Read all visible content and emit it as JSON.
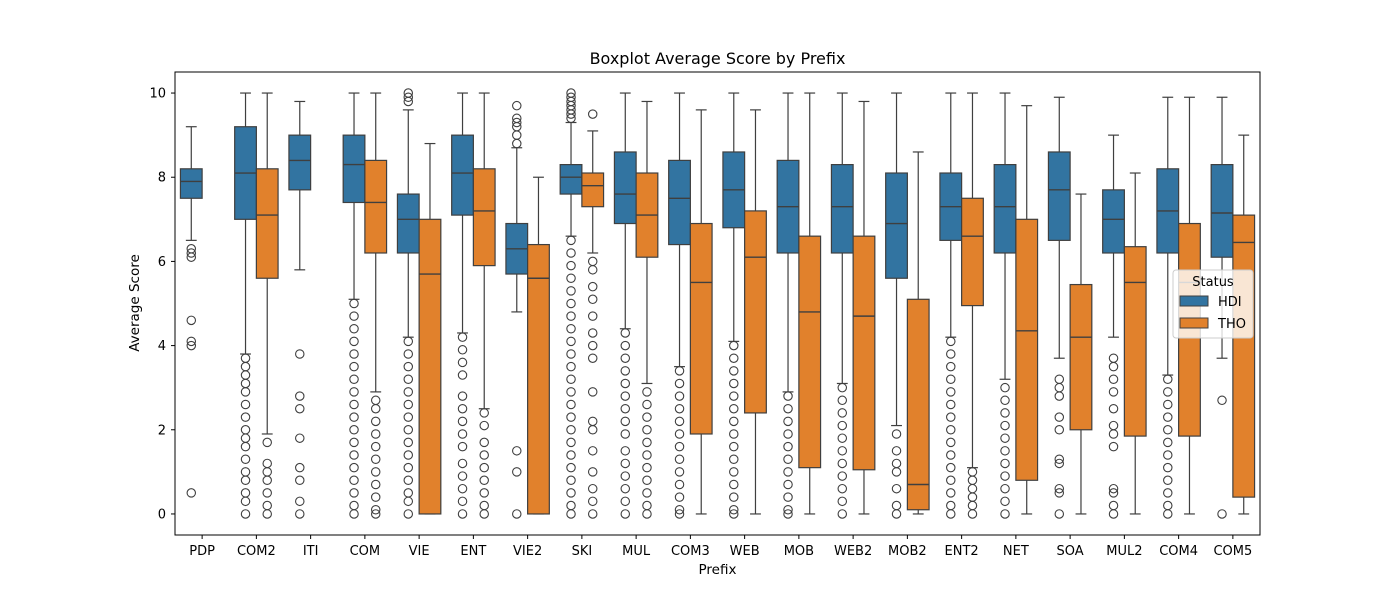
{
  "chart_data": {
    "type": "boxplot",
    "title": "Boxplot Average Score by Prefix",
    "xlabel": "Prefix",
    "ylabel": "Average Score",
    "ylim": [
      -0.5,
      10.5
    ],
    "yticks": [
      0,
      2,
      4,
      6,
      8,
      10
    ],
    "grid": false,
    "legend": {
      "title": "Status",
      "placement": "right"
    },
    "categories": [
      "PDP",
      "COM2",
      "ITI",
      "COM",
      "VIE",
      "ENT",
      "VIE2",
      "SKI",
      "MUL",
      "COM3",
      "WEB",
      "MOB",
      "WEB2",
      "MOB2",
      "ENT2",
      "NET",
      "SOA",
      "MUL2",
      "COM4",
      "COM5"
    ],
    "series": [
      {
        "name": "HDI",
        "color": "#3274a1",
        "boxes": [
          {
            "category": "PDP",
            "whisker_low": 6.5,
            "q1": 7.5,
            "median": 7.9,
            "q3": 8.2,
            "whisker_high": 9.2,
            "outliers": [
              6.3,
              6.2,
              6.1,
              4.6,
              4.1,
              4.0,
              0.5
            ]
          },
          {
            "category": "COM2",
            "whisker_low": 3.8,
            "q1": 7.0,
            "median": 8.1,
            "q3": 9.2,
            "whisker_high": 10.0,
            "outliers": [
              3.7,
              3.5,
              3.3,
              3.1,
              2.9,
              2.6,
              2.3,
              2.0,
              1.8,
              1.6,
              1.3,
              1.0,
              0.8,
              0.5,
              0.3,
              0.0
            ]
          },
          {
            "category": "ITI",
            "whisker_low": 5.8,
            "q1": 7.7,
            "median": 8.4,
            "q3": 9.0,
            "whisker_high": 9.8,
            "outliers": [
              3.8,
              2.8,
              2.5,
              1.8,
              1.1,
              0.8,
              0.3,
              0.0
            ]
          },
          {
            "category": "COM",
            "whisker_low": 5.1,
            "q1": 7.4,
            "median": 8.3,
            "q3": 9.0,
            "whisker_high": 10.0,
            "outliers": [
              5.0,
              4.7,
              4.4,
              4.1,
              3.8,
              3.5,
              3.2,
              2.9,
              2.6,
              2.3,
              2.0,
              1.7,
              1.4,
              1.1,
              0.8,
              0.5,
              0.2,
              0.0
            ]
          },
          {
            "category": "VIE",
            "whisker_low": 4.2,
            "q1": 6.2,
            "median": 7.0,
            "q3": 7.6,
            "whisker_high": 9.6,
            "outliers": [
              10.0,
              9.9,
              9.8,
              4.1,
              3.8,
              3.5,
              3.2,
              2.9,
              2.6,
              2.3,
              2.0,
              1.7,
              1.4,
              1.1,
              0.8,
              0.5,
              0.3,
              0.0
            ]
          },
          {
            "category": "ENT",
            "whisker_low": 4.3,
            "q1": 7.1,
            "median": 8.1,
            "q3": 9.0,
            "whisker_high": 10.0,
            "outliers": [
              4.2,
              3.9,
              3.6,
              3.3,
              2.8,
              2.5,
              2.2,
              1.9,
              1.6,
              1.2,
              0.9,
              0.6,
              0.3,
              0.0
            ]
          },
          {
            "category": "VIE2",
            "whisker_low": 4.8,
            "q1": 5.7,
            "median": 6.3,
            "q3": 6.9,
            "whisker_high": 8.7,
            "outliers": [
              9.7,
              9.4,
              9.3,
              9.2,
              9.0,
              8.8,
              1.5,
              1.0,
              0.0
            ]
          },
          {
            "category": "SKI",
            "whisker_low": 6.6,
            "q1": 7.6,
            "median": 8.0,
            "q3": 8.3,
            "whisker_high": 9.3,
            "outliers": [
              10.0,
              9.9,
              9.8,
              9.7,
              9.6,
              9.5,
              9.4,
              6.5,
              6.2,
              5.9,
              5.6,
              5.3,
              5.0,
              4.7,
              4.4,
              4.1,
              3.8,
              3.5,
              3.2,
              2.9,
              2.6,
              2.3,
              2.0,
              1.7,
              1.4,
              1.1,
              0.8,
              0.5,
              0.2,
              0.0
            ]
          },
          {
            "category": "MUL",
            "whisker_low": 4.4,
            "q1": 6.9,
            "median": 7.6,
            "q3": 8.6,
            "whisker_high": 10.0,
            "outliers": [
              4.3,
              4.0,
              3.7,
              3.4,
              3.1,
              2.8,
              2.5,
              2.2,
              1.9,
              1.5,
              1.2,
              0.9,
              0.6,
              0.3,
              0.0
            ]
          },
          {
            "category": "COM3",
            "whisker_low": 3.5,
            "q1": 6.4,
            "median": 7.5,
            "q3": 8.4,
            "whisker_high": 10.0,
            "outliers": [
              3.4,
              3.1,
              2.8,
              2.5,
              2.2,
              1.9,
              1.6,
              1.3,
              1.0,
              0.7,
              0.4,
              0.1,
              0.0
            ]
          },
          {
            "category": "WEB",
            "whisker_low": 4.1,
            "q1": 6.8,
            "median": 7.7,
            "q3": 8.6,
            "whisker_high": 10.0,
            "outliers": [
              4.0,
              3.7,
              3.4,
              3.1,
              2.8,
              2.5,
              2.2,
              1.9,
              1.6,
              1.3,
              1.0,
              0.7,
              0.4,
              0.1,
              0.0
            ]
          },
          {
            "category": "MOB",
            "whisker_low": 2.9,
            "q1": 6.2,
            "median": 7.3,
            "q3": 8.4,
            "whisker_high": 10.0,
            "outliers": [
              2.8,
              2.5,
              2.2,
              1.9,
              1.6,
              1.3,
              1.0,
              0.7,
              0.4,
              0.1,
              0.0
            ]
          },
          {
            "category": "WEB2",
            "whisker_low": 3.1,
            "q1": 6.2,
            "median": 7.3,
            "q3": 8.3,
            "whisker_high": 10.0,
            "outliers": [
              3.0,
              2.7,
              2.4,
              2.1,
              1.8,
              1.5,
              1.2,
              0.9,
              0.6,
              0.3,
              0.0
            ]
          },
          {
            "category": "MOB2",
            "whisker_low": 2.1,
            "q1": 5.6,
            "median": 6.9,
            "q3": 8.1,
            "whisker_high": 10.0,
            "outliers": [
              1.9,
              1.5,
              1.2,
              1.0,
              0.6,
              0.2,
              0.0
            ]
          },
          {
            "category": "ENT2",
            "whisker_low": 4.2,
            "q1": 6.5,
            "median": 7.3,
            "q3": 8.1,
            "whisker_high": 10.0,
            "outliers": [
              4.1,
              3.8,
              3.5,
              3.2,
              2.9,
              2.6,
              2.3,
              2.0,
              1.7,
              1.4,
              1.1,
              0.8,
              0.5,
              0.2,
              0.0
            ]
          },
          {
            "category": "NET",
            "whisker_low": 3.2,
            "q1": 6.2,
            "median": 7.3,
            "q3": 8.3,
            "whisker_high": 10.0,
            "outliers": [
              3.0,
              2.7,
              2.4,
              2.1,
              1.8,
              1.5,
              1.2,
              0.9,
              0.6,
              0.3,
              0.0
            ]
          },
          {
            "category": "SOA",
            "whisker_low": 3.7,
            "q1": 6.5,
            "median": 7.7,
            "q3": 8.6,
            "whisker_high": 9.9,
            "outliers": [
              3.2,
              3.0,
              2.8,
              2.3,
              2.0,
              1.3,
              1.2,
              0.6,
              0.5,
              0.0
            ]
          },
          {
            "category": "MUL2",
            "whisker_low": 4.2,
            "q1": 6.2,
            "median": 7.0,
            "q3": 7.7,
            "whisker_high": 9.0,
            "outliers": [
              3.7,
              3.5,
              3.2,
              2.9,
              2.5,
              2.1,
              1.9,
              1.6,
              0.6,
              0.5,
              0.2,
              0.0
            ]
          },
          {
            "category": "COM4",
            "whisker_low": 3.3,
            "q1": 6.2,
            "median": 7.2,
            "q3": 8.2,
            "whisker_high": 9.9,
            "outliers": [
              3.2,
              2.9,
              2.6,
              2.3,
              2.0,
              1.7,
              1.4,
              1.1,
              0.8,
              0.5,
              0.2,
              0.0
            ]
          },
          {
            "category": "COM5",
            "whisker_low": 3.7,
            "q1": 6.1,
            "median": 7.15,
            "q3": 8.3,
            "whisker_high": 9.9,
            "outliers": [
              2.7,
              0.0
            ]
          }
        ]
      },
      {
        "name": "THO",
        "color": "#e1812c",
        "boxes": [
          {
            "category": "PDP",
            "whisker_low": null,
            "q1": null,
            "median": null,
            "q3": null,
            "whisker_high": null,
            "outliers": []
          },
          {
            "category": "COM2",
            "whisker_low": 1.9,
            "q1": 5.6,
            "median": 7.1,
            "q3": 8.2,
            "whisker_high": 10.0,
            "outliers": [
              1.7,
              1.2,
              1.0,
              0.8,
              0.5,
              0.2,
              0.0
            ]
          },
          {
            "category": "ITI",
            "whisker_low": null,
            "q1": null,
            "median": null,
            "q3": null,
            "whisker_high": null,
            "outliers": []
          },
          {
            "category": "COM",
            "whisker_low": 2.9,
            "q1": 6.2,
            "median": 7.4,
            "q3": 8.4,
            "whisker_high": 10.0,
            "outliers": [
              2.7,
              2.5,
              2.2,
              1.9,
              1.6,
              1.3,
              1.0,
              0.7,
              0.4,
              0.1,
              0.0
            ]
          },
          {
            "category": "VIE",
            "whisker_low": 0.0,
            "q1": 0.0,
            "median": 5.7,
            "q3": 7.0,
            "whisker_high": 8.8,
            "outliers": []
          },
          {
            "category": "ENT",
            "whisker_low": 2.5,
            "q1": 5.9,
            "median": 7.2,
            "q3": 8.2,
            "whisker_high": 10.0,
            "outliers": [
              2.4,
              2.1,
              1.7,
              1.4,
              1.1,
              0.8,
              0.5,
              0.2,
              0.0
            ]
          },
          {
            "category": "VIE2",
            "whisker_low": 0.0,
            "q1": 0.0,
            "median": 5.6,
            "q3": 6.4,
            "whisker_high": 8.0,
            "outliers": []
          },
          {
            "category": "SKI",
            "whisker_low": 6.2,
            "q1": 7.3,
            "median": 7.8,
            "q3": 8.1,
            "whisker_high": 9.1,
            "outliers": [
              9.5,
              6.0,
              5.8,
              5.4,
              5.1,
              4.7,
              4.3,
              4.0,
              3.7,
              2.9,
              2.2,
              2.0,
              1.5,
              1.0,
              0.6,
              0.3,
              0.0
            ]
          },
          {
            "category": "MUL",
            "whisker_low": 3.1,
            "q1": 6.1,
            "median": 7.1,
            "q3": 8.1,
            "whisker_high": 9.8,
            "outliers": [
              2.9,
              2.6,
              2.3,
              2.0,
              1.7,
              1.4,
              1.1,
              0.8,
              0.5,
              0.2,
              0.0
            ]
          },
          {
            "category": "COM3",
            "whisker_low": 0.0,
            "q1": 1.9,
            "median": 5.5,
            "q3": 6.9,
            "whisker_high": 9.6,
            "outliers": []
          },
          {
            "category": "WEB",
            "whisker_low": 0.0,
            "q1": 2.4,
            "median": 6.1,
            "q3": 7.2,
            "whisker_high": 9.6,
            "outliers": []
          },
          {
            "category": "MOB",
            "whisker_low": 0.0,
            "q1": 1.1,
            "median": 4.8,
            "q3": 6.6,
            "whisker_high": 10.0,
            "outliers": []
          },
          {
            "category": "WEB2",
            "whisker_low": 0.0,
            "q1": 1.05,
            "median": 4.7,
            "q3": 6.6,
            "whisker_high": 9.8,
            "outliers": []
          },
          {
            "category": "MOB2",
            "whisker_low": 0.0,
            "q1": 0.1,
            "median": 0.7,
            "q3": 5.1,
            "whisker_high": 8.6,
            "outliers": []
          },
          {
            "category": "ENT2",
            "whisker_low": 1.1,
            "q1": 4.95,
            "median": 6.6,
            "q3": 7.5,
            "whisker_high": 10.0,
            "outliers": [
              1.0,
              0.8,
              0.6,
              0.4,
              0.2,
              0.0
            ]
          },
          {
            "category": "NET",
            "whisker_low": 0.0,
            "q1": 0.8,
            "median": 4.35,
            "q3": 7.0,
            "whisker_high": 9.7,
            "outliers": []
          },
          {
            "category": "SOA",
            "whisker_low": 0.0,
            "q1": 2.0,
            "median": 4.2,
            "q3": 5.45,
            "whisker_high": 7.6,
            "outliers": []
          },
          {
            "category": "MUL2",
            "whisker_low": 0.0,
            "q1": 1.85,
            "median": 5.5,
            "q3": 6.35,
            "whisker_high": 8.1,
            "outliers": []
          },
          {
            "category": "COM4",
            "whisker_low": 0.0,
            "q1": 1.85,
            "median": 5.5,
            "q3": 6.9,
            "whisker_high": 9.9,
            "outliers": []
          },
          {
            "category": "COM5",
            "whisker_low": 0.0,
            "q1": 0.4,
            "median": 6.45,
            "q3": 7.1,
            "whisker_high": 9.0,
            "outliers": []
          }
        ]
      }
    ]
  }
}
